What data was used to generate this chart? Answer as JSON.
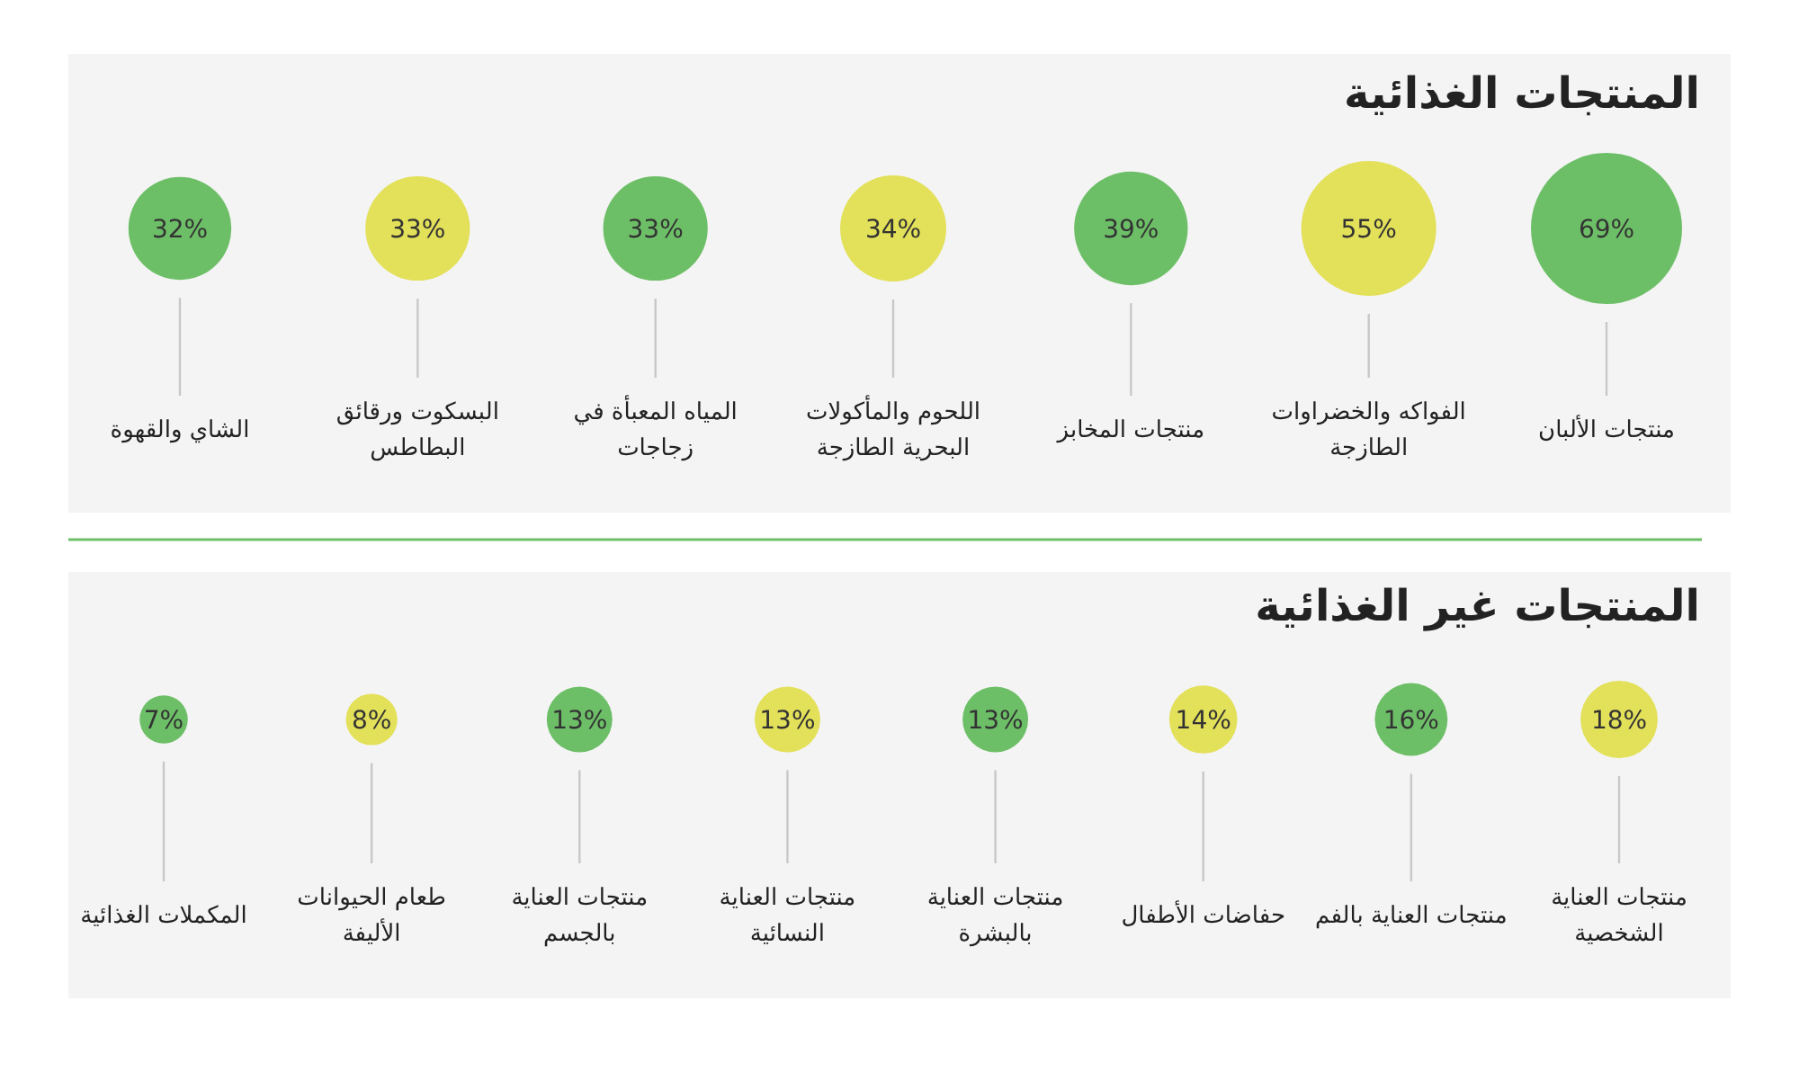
{
  "chart_data": [
    {
      "type": "other",
      "title": "المنتجات الغذائية",
      "categories": [
        "الشاي والقهوة",
        "البسكوت ورقائق البطاطس",
        "المياه المعبأة في زجاجات",
        "اللحوم والمأكولات البحرية الطازجة",
        "منتجات المخابز",
        "الفواكه والخضراوات الطازجة",
        "منتجات الألبان"
      ],
      "series": [
        {
          "color": "#6dbf67",
          "values": [
            32,
            null,
            33,
            null,
            39,
            null,
            69
          ],
          "value_labels": [
            "32%",
            null,
            "33%",
            null,
            "39%",
            null,
            "69%"
          ]
        },
        {
          "color": "#e3e05a",
          "values": [
            null,
            33,
            null,
            34,
            null,
            55,
            null
          ],
          "value_labels": [
            null,
            "33%",
            null,
            "34%",
            null,
            "55%",
            null
          ]
        }
      ]
    },
    {
      "type": "other",
      "title": "المنتجات غير الغذائية",
      "categories": [
        "المكملات الغذائية",
        "طعام الحيوانات الأليفة",
        "منتجات العناية بالجسم",
        "منتجات العناية النسائية",
        "منتجات العناية بالبشرة",
        "حفاضات الأطفال",
        "منتجات العناية بالفم",
        "منتجات العناية الشخصية"
      ],
      "series": [
        {
          "color": "#6dbf67",
          "values": [
            7,
            null,
            13,
            null,
            13,
            null,
            16,
            null
          ],
          "value_labels": [
            "7%",
            null,
            "13%",
            null,
            "13%",
            null,
            "16%",
            null
          ]
        },
        {
          "color": "#e3e05a",
          "values": [
            null,
            8,
            null,
            13,
            null,
            14,
            null,
            18
          ],
          "value_labels": [
            null,
            "8%",
            null,
            "13%",
            null,
            "14%",
            null,
            "18%"
          ]
        }
      ]
    }
  ]
}
